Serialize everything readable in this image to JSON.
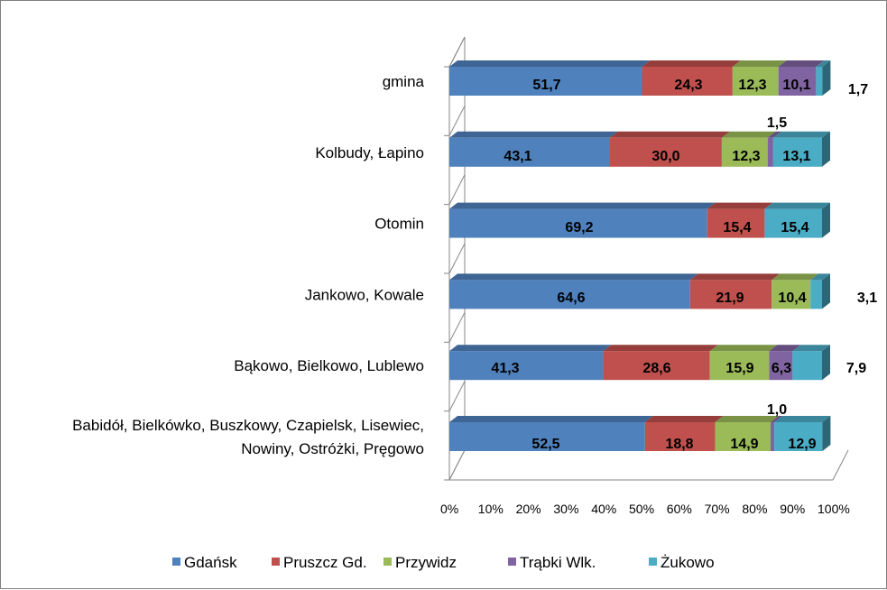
{
  "chart_data": {
    "type": "bar",
    "orientation": "horizontal",
    "stacked": "percent",
    "categories": [
      [
        "gmina"
      ],
      [
        "Kolbudy, Łapino"
      ],
      [
        "Otomin"
      ],
      [
        "Jankowo, Kowale"
      ],
      [
        "Bąkowo, Bielkowo, Lublewo"
      ],
      [
        "Babidół, Bielkówko, Buszkowy, Czapielsk, Lisewiec,",
        "Nowiny, Ostróżki,  Pręgowo"
      ]
    ],
    "series": [
      {
        "name": "Gdańsk",
        "color": "#4f81bd",
        "values": [
          51.7,
          43.1,
          69.2,
          64.6,
          41.3,
          52.5
        ]
      },
      {
        "name": "Pruszcz Gd.",
        "color": "#c0504d",
        "values": [
          24.3,
          30.0,
          15.4,
          21.9,
          28.6,
          18.8
        ]
      },
      {
        "name": "Przywidz",
        "color": "#9bbb59",
        "values": [
          12.3,
          12.3,
          0,
          10.4,
          15.9,
          14.9
        ]
      },
      {
        "name": "Trąbki Wlk.",
        "color": "#8064a2",
        "values": [
          10.1,
          1.5,
          0,
          0,
          6.3,
          1.0
        ]
      },
      {
        "name": "Żukowo",
        "color": "#4bacc6",
        "values": [
          1.7,
          13.1,
          15.4,
          3.1,
          7.9,
          12.9
        ]
      }
    ],
    "value_labels": [
      [
        "51,7",
        "24,3",
        "12,3",
        "10,1",
        "1,7"
      ],
      [
        "43,1",
        "30,0",
        "12,3",
        "1,5",
        "13,1"
      ],
      [
        "69,2",
        "15,4",
        "",
        "",
        "15,4"
      ],
      [
        "64,6",
        "21,9",
        "10,4",
        "",
        "3,1"
      ],
      [
        "41,3",
        "28,6",
        "15,9",
        "6,3",
        "7,9"
      ],
      [
        "52,5",
        "18,8",
        "14,9",
        "1,0",
        "12,9"
      ]
    ],
    "x_ticks": [
      "0%",
      "10%",
      "20%",
      "30%",
      "40%",
      "50%",
      "60%",
      "70%",
      "80%",
      "90%",
      "100%"
    ],
    "xlim": [
      0,
      100
    ],
    "title": "",
    "xlabel": "",
    "ylabel": "",
    "grid": false,
    "legend": "bottom",
    "style": "3d"
  }
}
